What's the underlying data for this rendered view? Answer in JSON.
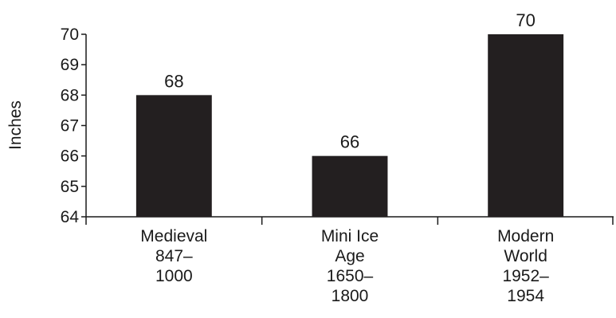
{
  "chart_data": {
    "type": "bar",
    "title": "",
    "xlabel": "",
    "ylabel": "Inches",
    "ylim": [
      64,
      70
    ],
    "yticks": [
      64,
      65,
      66,
      67,
      68,
      69,
      70
    ],
    "grid": false,
    "categories": [
      "Medieval 847–1000",
      "Mini Ice Age 1650–1800",
      "Modern World 1952–1954"
    ],
    "category_lines": [
      [
        "Medieval",
        "847–",
        "1000"
      ],
      [
        "Mini Ice",
        "Age",
        "1650–",
        "1800"
      ],
      [
        "Modern",
        "World",
        "1952–",
        "1954"
      ]
    ],
    "values": [
      68,
      66,
      70
    ],
    "data_labels": [
      "68",
      "66",
      "70"
    ],
    "bar_color": "#231f20"
  }
}
